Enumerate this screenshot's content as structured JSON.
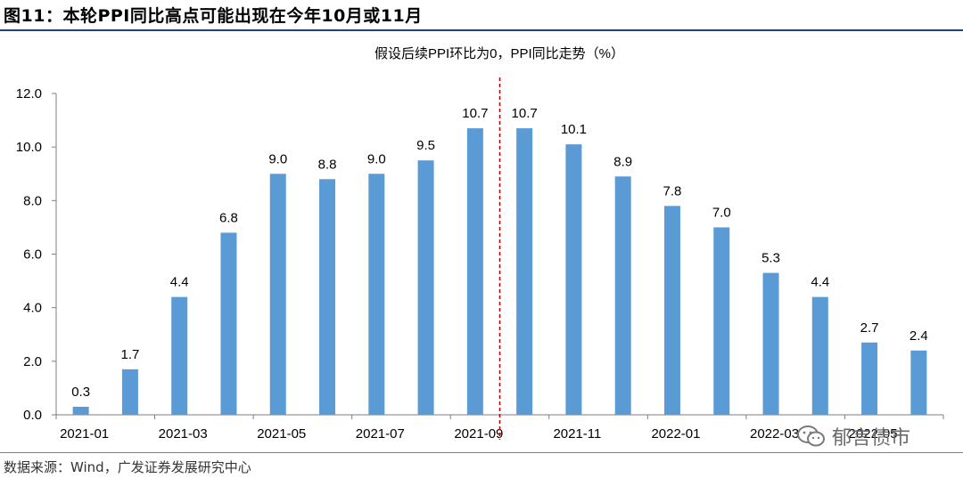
{
  "figure": {
    "title": "图11：本轮PPI同比高点可能出现在今年10月或11月",
    "source": "数据来源：Wind，广发证券发展研究中心",
    "watermark_text": "郁言债市"
  },
  "chart_data": {
    "type": "bar",
    "title": "假设后续PPI环比为0，PPI同比走势（%）",
    "xlabel": "",
    "ylabel": "",
    "ylim": [
      0,
      12
    ],
    "yticks": [
      "0.0",
      "2.0",
      "4.0",
      "6.0",
      "8.0",
      "10.0",
      "12.0"
    ],
    "categories": [
      "2021-01",
      "2021-02",
      "2021-03",
      "2021-04",
      "2021-05",
      "2021-06",
      "2021-07",
      "2021-08",
      "2021-09",
      "2021-10",
      "2021-11",
      "2021-12",
      "2022-01",
      "2022-02",
      "2022-03",
      "2022-04",
      "2022-05",
      "2022-06"
    ],
    "xtick_labels": [
      "2021-01",
      "2021-03",
      "2021-05",
      "2021-07",
      "2021-09",
      "2021-11",
      "2022-01",
      "2022-03",
      "2022-05"
    ],
    "values": [
      0.3,
      1.7,
      4.4,
      6.8,
      9.0,
      8.8,
      9.0,
      9.5,
      10.7,
      10.7,
      10.1,
      8.9,
      7.8,
      7.0,
      5.3,
      4.4,
      2.7,
      2.4
    ],
    "data_labels": [
      "0.3",
      "1.7",
      "4.4",
      "6.8",
      "9.0",
      "8.8",
      "9.0",
      "9.5",
      "10.7",
      "10.7",
      "10.1",
      "8.9",
      "7.8",
      "7.0",
      "5.3",
      "4.4",
      "2.7",
      "2.4"
    ],
    "divider_after": "2021-09",
    "bar_color": "#5b9bd5",
    "divider_color": "#c00000",
    "grid": false
  }
}
